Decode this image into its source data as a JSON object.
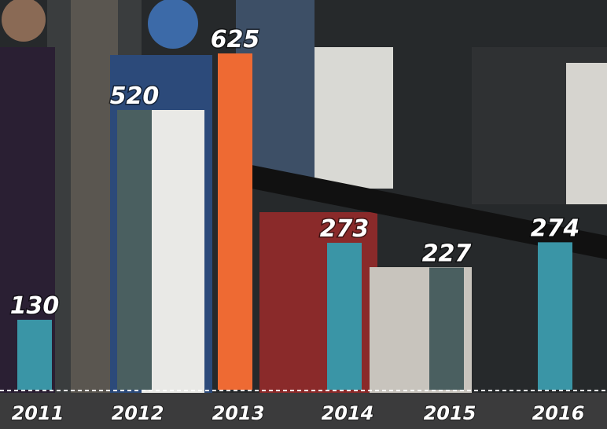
{
  "chart_data": {
    "type": "bar",
    "categories": [
      "2011",
      "2012",
      "2013",
      "2014",
      "2015",
      "2016"
    ],
    "values": [
      130,
      520,
      625,
      273,
      227,
      274
    ],
    "colors": [
      "#3a95a6",
      "#4a5f60",
      "#ee6a33",
      "#3a95a6",
      "#4a5f60",
      "#3a95a6"
    ]
  }
}
